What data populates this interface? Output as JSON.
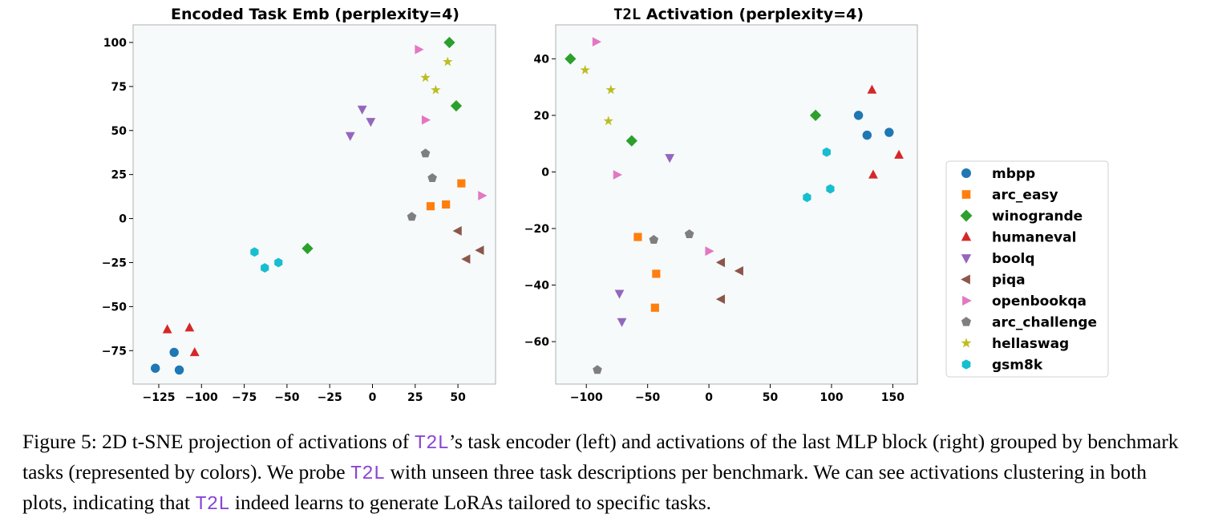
{
  "chart_data": [
    {
      "type": "scatter",
      "title": "Encoded Task Emb (perplexity=4)",
      "xlabel": "",
      "ylabel": "",
      "xlim": [
        -140,
        72
      ],
      "ylim": [
        -94,
        110
      ],
      "xticks": [
        -125,
        -100,
        -75,
        -50,
        -25,
        0,
        25,
        50
      ],
      "xtick_labels": [
        "−125",
        "−100",
        "−75",
        "−50",
        "−25",
        "0",
        "25",
        "50"
      ],
      "yticks": [
        -75,
        -50,
        -25,
        0,
        25,
        50,
        75,
        100
      ],
      "ytick_labels": [
        "−75",
        "−50",
        "−25",
        "0",
        "25",
        "50",
        "75",
        "100"
      ],
      "series": [
        {
          "name": "mbpp",
          "points": [
            [
              -127,
              -85
            ],
            [
              -116,
              -76
            ],
            [
              -113,
              -86
            ]
          ]
        },
        {
          "name": "arc_easy",
          "points": [
            [
              34,
              7
            ],
            [
              43,
              8
            ],
            [
              52,
              20
            ]
          ]
        },
        {
          "name": "winogrande",
          "points": [
            [
              45,
              100
            ],
            [
              49,
              64
            ],
            [
              -38,
              -17
            ]
          ]
        },
        {
          "name": "humaneval",
          "points": [
            [
              -120,
              -63
            ],
            [
              -107,
              -62
            ],
            [
              -104,
              -76
            ]
          ]
        },
        {
          "name": "boolq",
          "points": [
            [
              -6,
              62
            ],
            [
              -1,
              55
            ],
            [
              -13,
              47
            ]
          ]
        },
        {
          "name": "piqa",
          "points": [
            [
              50,
              -7
            ],
            [
              55,
              -23
            ],
            [
              63,
              -18
            ]
          ]
        },
        {
          "name": "openbookqa",
          "points": [
            [
              27,
              96
            ],
            [
              31,
              56
            ],
            [
              64,
              13
            ]
          ]
        },
        {
          "name": "arc_challenge",
          "points": [
            [
              31,
              37
            ],
            [
              35,
              23
            ],
            [
              23,
              1
            ]
          ]
        },
        {
          "name": "hellaswag",
          "points": [
            [
              44,
              89
            ],
            [
              31,
              80
            ],
            [
              37,
              73
            ]
          ]
        },
        {
          "name": "gsm8k",
          "points": [
            [
              -69,
              -19
            ],
            [
              -63,
              -28
            ],
            [
              -55,
              -25
            ]
          ]
        }
      ]
    },
    {
      "type": "scatter",
      "title_mono": "T2L",
      "title_rest": " Activation (perplexity=4)",
      "xlabel": "",
      "ylabel": "",
      "xlim": [
        -125,
        170
      ],
      "ylim": [
        -75,
        52
      ],
      "xticks": [
        -100,
        -50,
        0,
        50,
        100,
        150
      ],
      "xtick_labels": [
        "−100",
        "−50",
        "0",
        "50",
        "100",
        "150"
      ],
      "yticks": [
        -60,
        -40,
        -20,
        0,
        20,
        40
      ],
      "ytick_labels": [
        "−60",
        "−40",
        "−20",
        "0",
        "20",
        "40"
      ],
      "series": [
        {
          "name": "mbpp",
          "points": [
            [
              122,
              20
            ],
            [
              129,
              13
            ],
            [
              147,
              14
            ]
          ]
        },
        {
          "name": "arc_easy",
          "points": [
            [
              -58,
              -23
            ],
            [
              -43,
              -36
            ],
            [
              -44,
              -48
            ]
          ]
        },
        {
          "name": "winogrande",
          "points": [
            [
              -113,
              40
            ],
            [
              -63,
              11
            ],
            [
              87,
              20
            ]
          ]
        },
        {
          "name": "humaneval",
          "points": [
            [
              133,
              29
            ],
            [
              134,
              -1
            ],
            [
              155,
              6
            ]
          ]
        },
        {
          "name": "boolq",
          "points": [
            [
              -73,
              -43
            ],
            [
              -71,
              -53
            ],
            [
              -32,
              5
            ]
          ]
        },
        {
          "name": "piqa",
          "points": [
            [
              10,
              -32
            ],
            [
              25,
              -35
            ],
            [
              10,
              -45
            ]
          ]
        },
        {
          "name": "openbookqa",
          "points": [
            [
              -92,
              46
            ],
            [
              -75,
              -1
            ],
            [
              0,
              -28
            ]
          ]
        },
        {
          "name": "arc_challenge",
          "points": [
            [
              -45,
              -24
            ],
            [
              -16,
              -22
            ],
            [
              -91,
              -70
            ]
          ]
        },
        {
          "name": "hellaswag",
          "points": [
            [
              -101,
              36
            ],
            [
              -80,
              29
            ],
            [
              -82,
              18
            ]
          ]
        },
        {
          "name": "gsm8k",
          "points": [
            [
              96,
              7
            ],
            [
              80,
              -9
            ],
            [
              99,
              -6
            ]
          ]
        }
      ]
    }
  ],
  "legend": {
    "items": [
      {
        "name": "mbpp",
        "color": "#1f77b4",
        "marker": "circle"
      },
      {
        "name": "arc_easy",
        "color": "#ff7f0e",
        "marker": "square"
      },
      {
        "name": "winogrande",
        "color": "#2ca02c",
        "marker": "diamond"
      },
      {
        "name": "humaneval",
        "color": "#d62728",
        "marker": "triangle-up"
      },
      {
        "name": "boolq",
        "color": "#9467bd",
        "marker": "triangle-down"
      },
      {
        "name": "piqa",
        "color": "#8c564b",
        "marker": "triangle-left"
      },
      {
        "name": "openbookqa",
        "color": "#e377c2",
        "marker": "triangle-right"
      },
      {
        "name": "arc_challenge",
        "color": "#7f7f7f",
        "marker": "pentagon"
      },
      {
        "name": "hellaswag",
        "color": "#bcbd22",
        "marker": "star"
      },
      {
        "name": "gsm8k",
        "color": "#17becf",
        "marker": "hexagon"
      }
    ]
  },
  "colors": {
    "plot_background": "#f6fafb",
    "axes_edge": "#b0b0b0",
    "code_text": "#8b46d6"
  },
  "caption": {
    "part1": "Figure 5: 2D t-SNE projection of activations of ",
    "code1": "T2L",
    "part2": "’s task encoder (left) and activations of the last MLP block (right) grouped by benchmark tasks (represented by colors). We probe ",
    "code2": "T2L",
    "part3": " with unseen three task descriptions per benchmark. We can see activations clustering in both plots, indicating that ",
    "code3": "T2L",
    "part4": " indeed learns to generate LoRAs tailored to specific tasks."
  }
}
